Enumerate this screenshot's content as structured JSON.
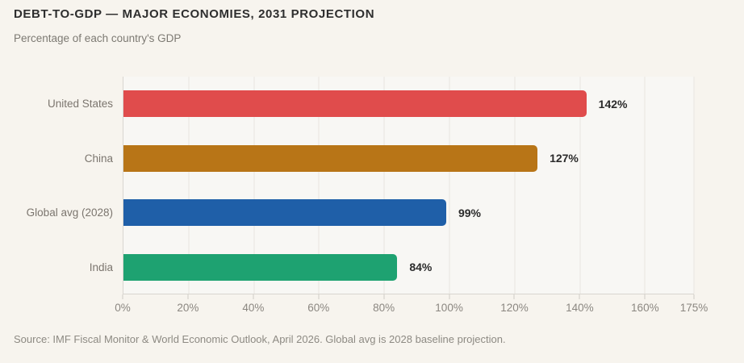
{
  "header": {
    "title": "DEBT-TO-GDP — MAJOR ECONOMIES, 2031 PROJECTION",
    "subtitle": "Percentage of each country's GDP"
  },
  "chart_data": {
    "type": "bar",
    "orientation": "horizontal",
    "title": "DEBT-TO-GDP — MAJOR ECONOMIES, 2031 PROJECTION",
    "subtitle": "Percentage of each country's GDP",
    "categories": [
      "United States",
      "China",
      "Global avg (2028)",
      "India"
    ],
    "values": [
      142,
      127,
      99,
      84
    ],
    "value_labels": [
      "142%",
      "127%",
      "99%",
      "84%"
    ],
    "bar_colors": [
      "#e04c4c",
      "#b87517",
      "#1f5fa8",
      "#1ea271"
    ],
    "xlabel": "",
    "ylabel": "",
    "xlim": [
      0,
      175
    ],
    "x_ticks": [
      0,
      20,
      40,
      60,
      80,
      100,
      120,
      140,
      160,
      175
    ],
    "x_tick_labels": [
      "0%",
      "20%",
      "40%",
      "60%",
      "80%",
      "100%",
      "120%",
      "140%",
      "160%",
      "175%"
    ],
    "grid": true,
    "legend": false,
    "background_color": "#f7f4ee",
    "plot_background_color": "#f8f7f4"
  },
  "footer": {
    "source": "Source: IMF Fiscal Monitor & World Economic Outlook, April 2026. Global avg is 2028 baseline projection."
  }
}
